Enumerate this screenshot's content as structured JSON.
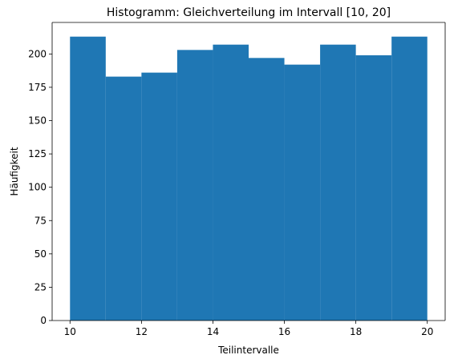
{
  "chart_data": {
    "type": "bar",
    "title": "Histogramm: Gleichverteilung im Intervall [10, 20]",
    "xlabel": "Teilintervalle",
    "ylabel": "Häufigkeit",
    "bin_edges": [
      10,
      11,
      12,
      13,
      14,
      15,
      16,
      17,
      18,
      19,
      20
    ],
    "values": [
      213,
      183,
      186,
      203,
      207,
      197,
      192,
      207,
      199,
      213
    ],
    "xlim": [
      9.5,
      20.5
    ],
    "ylim": [
      0,
      223.65
    ],
    "xticks": [
      10,
      12,
      14,
      16,
      18,
      20
    ],
    "yticks": [
      0,
      25,
      50,
      75,
      100,
      125,
      150,
      175,
      200
    ],
    "bar_color": "#1f77b4",
    "grid": false,
    "legend": "none"
  }
}
